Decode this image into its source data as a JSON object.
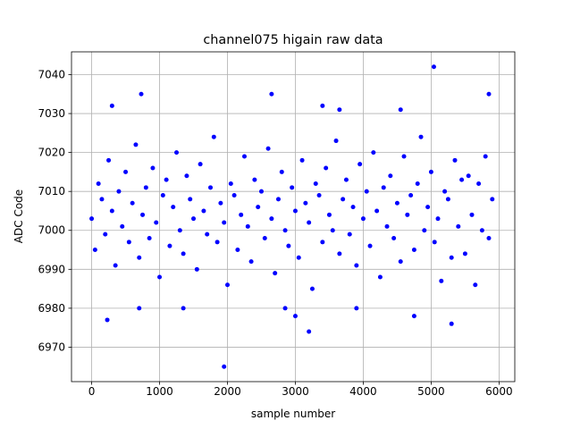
{
  "chart_data": {
    "type": "scatter",
    "title": "channel075 higain raw data",
    "xlabel": "sample number",
    "ylabel": "ADC Code",
    "series": [
      {
        "color": "#0000ff",
        "x": [
          0,
          50,
          100,
          150,
          200,
          250,
          300,
          350,
          400,
          450,
          500,
          550,
          600,
          650,
          700,
          750,
          800,
          850,
          900,
          950,
          1000,
          1050,
          1100,
          1150,
          1200,
          1250,
          1300,
          1350,
          1400,
          1450,
          1500,
          1550,
          1600,
          1650,
          1700,
          1750,
          1800,
          1850,
          1900,
          1950,
          2000,
          2050,
          2100,
          2150,
          2200,
          2250,
          2300,
          2350,
          2400,
          2450,
          2500,
          2550,
          2600,
          2650,
          2700,
          2750,
          2800,
          2850,
          2900,
          2950,
          3000,
          3050,
          3100,
          3150,
          3200,
          3250,
          3300,
          3350,
          3400,
          3450,
          3500,
          3550,
          3600,
          3650,
          3700,
          3750,
          3800,
          3850,
          3900,
          3950,
          4000,
          4050,
          4100,
          4150,
          4200,
          4250,
          4300,
          4350,
          4400,
          4450,
          4500,
          4550,
          4600,
          4650,
          4700,
          4750,
          4800,
          4850,
          4900,
          4950,
          5000,
          5050,
          5100,
          5150,
          5200,
          5250,
          5300,
          5350,
          5400,
          5450,
          5500,
          5550,
          5600,
          5650,
          5700,
          5750,
          5800,
          5850,
          5900,
          1950,
          5040,
          730,
          2650,
          5850,
          300,
          3400,
          4550,
          3650,
          3200,
          5300,
          230,
          3000,
          4750,
          700,
          1350,
          2850,
          3900
        ],
        "values": [
          7003,
          6995,
          7012,
          7008,
          6999,
          7018,
          7005,
          6991,
          7010,
          7001,
          7015,
          6997,
          7007,
          7022,
          6993,
          7004,
          7011,
          6998,
          7016,
          7002,
          6988,
          7009,
          7013,
          6996,
          7006,
          7020,
          7000,
          6994,
          7014,
          7008,
          7003,
          6990,
          7017,
          7005,
          6999,
          7011,
          7024,
          6997,
          7007,
          7002,
          6986,
          7012,
          7009,
          6995,
          7004,
          7019,
          7001,
          6992,
          7013,
          7006,
          7010,
          6998,
          7021,
          7003,
          6989,
          7008,
          7015,
          7000,
          6996,
          7011,
          7005,
          6993,
          7018,
          7007,
          7002,
          6985,
          7012,
          7009,
          6997,
          7016,
          7004,
          7000,
          7023,
          6994,
          7008,
          7013,
          6999,
          7006,
          6991,
          7017,
          7003,
          7010,
          6996,
          7020,
          7005,
          6988,
          7011,
          7001,
          7014,
          6998,
          7007,
          6992,
          7019,
          7004,
          7009,
          6995,
          7012,
          7024,
          7000,
          7006,
          7015,
          6997,
          7003,
          6987,
          7010,
          7008,
          6993,
          7018,
          7001,
          7013,
          6994,
          7014,
          7004,
          6986,
          7012,
          7000,
          7019,
          6998,
          7008,
          6965,
          7042,
          7035,
          7035,
          7035,
          7032,
          7032,
          7031,
          7031,
          6974,
          6976,
          6977,
          6978,
          6978,
          6980,
          6980,
          6980,
          6980
        ]
      }
    ],
    "xlim": [
      -297,
      6232
    ],
    "ylim": [
      6961.15,
      7045.85
    ],
    "xticks": [
      0,
      1000,
      2000,
      3000,
      4000,
      5000,
      6000
    ],
    "yticks": [
      6970,
      6980,
      6990,
      7000,
      7010,
      7020,
      7030,
      7040
    ],
    "grid": true
  }
}
